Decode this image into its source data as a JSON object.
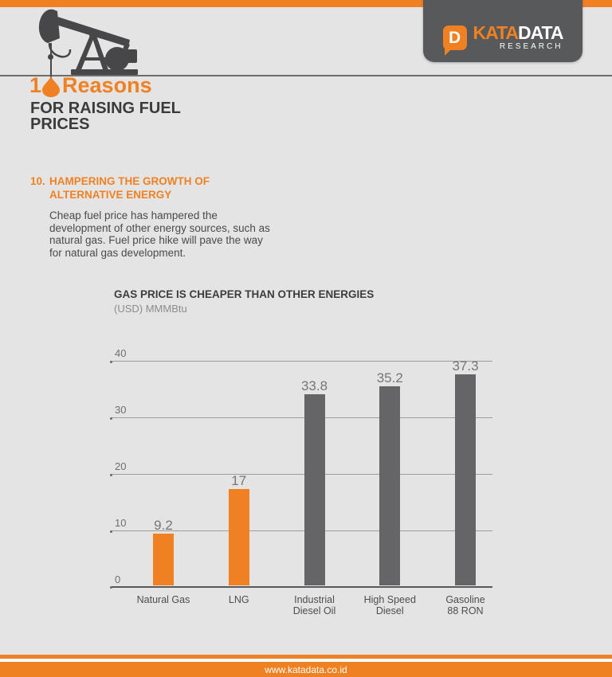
{
  "header": {
    "logo": {
      "d_letter": "D",
      "brand_orange": "KATA",
      "brand_white": "DATA",
      "sub": "RESEARCH"
    },
    "title_number": "1",
    "title_word": "Reasons",
    "subtitle": "FOR RAISING FUEL PRICES"
  },
  "section": {
    "number": "10.",
    "heading_lines": [
      "HAMPERING THE GROWTH OF",
      "ALTERNATIVE ENERGY"
    ],
    "body": "Cheap fuel price has hampered the development of other energy sources, such as natural gas. Fuel price hike will pave the way for natural gas development."
  },
  "chart_data": {
    "type": "bar",
    "title": "GAS PRICE IS CHEAPER THAN OTHER ENERGIES",
    "subtitle": "(USD) MMMBtu",
    "categories": [
      "Natural Gas",
      "LNG",
      "Industrial\nDiesel Oil",
      "High Speed\nDiesel",
      "Gasoline\n88 RON"
    ],
    "values": [
      9.2,
      17,
      33.8,
      35.2,
      37.3
    ],
    "value_labels": [
      "9.2",
      "17",
      "33.8",
      "35.2",
      "37.3"
    ],
    "bar_colors": [
      "#EF8122",
      "#EF8122",
      "#656567",
      "#656567",
      "#656567"
    ],
    "ylim": [
      0,
      40
    ],
    "yticks": [
      0,
      10,
      20,
      30,
      40
    ],
    "grid": true,
    "legend": false,
    "xlabel": "",
    "ylabel": ""
  },
  "footer": {
    "url": "www.katadata.co.id"
  },
  "colors": {
    "accent_orange": "#EF8122",
    "bar_gray": "#656567",
    "logo_box": "#58595B",
    "background": "#E4E4E4"
  }
}
